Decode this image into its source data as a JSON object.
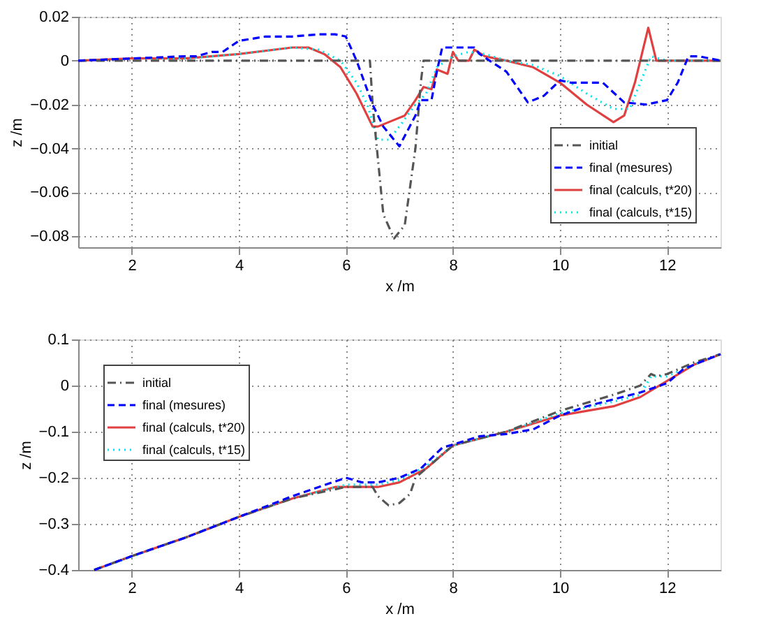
{
  "chart_data": [
    {
      "type": "line",
      "xlabel": "x /m",
      "ylabel": "z /m",
      "xlim": [
        1,
        13
      ],
      "xticks": [
        2,
        4,
        6,
        8,
        10,
        12
      ],
      "ylim": [
        -0.085,
        0.02
      ],
      "yticks": [
        -0.08,
        -0.06,
        -0.04,
        -0.02,
        {
          "value": 0,
          "label": "0"
        },
        0.02
      ],
      "grid": true,
      "legend": "bottom right",
      "series": [
        {
          "name": "initial",
          "color": "#555555",
          "line_style": "dashdot",
          "x": [
            1,
            6.4,
            6.45,
            6.5,
            6.7,
            6.9,
            7.1,
            7.3,
            7.4,
            7.45,
            13
          ],
          "values": [
            0,
            0,
            0,
            -0.02,
            -0.07,
            -0.081,
            -0.075,
            -0.04,
            -0.01,
            0,
            0
          ]
        },
        {
          "name": "final (mesures)",
          "color": "#0000ff",
          "line_style": "dashed",
          "x": [
            1,
            2,
            3,
            3.2,
            3.5,
            3.7,
            4,
            4.5,
            5,
            5.5,
            5.8,
            6,
            6.2,
            6.5,
            6.7,
            7,
            7.3,
            7.4,
            7.6,
            7.7,
            7.8,
            8.4,
            8.5,
            9,
            9.4,
            9.7,
            10,
            10.2,
            10.8,
            11.2,
            11.6,
            12,
            12.2,
            12.4,
            12.6,
            13
          ],
          "values": [
            0,
            0.001,
            0.002,
            0.002,
            0.004,
            0.004,
            0.009,
            0.011,
            0.011,
            0.012,
            0.012,
            0.011,
            0,
            -0.02,
            -0.03,
            -0.039,
            -0.025,
            -0.018,
            -0.018,
            -0.005,
            0.006,
            0.006,
            0.003,
            -0.005,
            -0.019,
            -0.016,
            -0.009,
            -0.01,
            -0.01,
            -0.019,
            -0.02,
            -0.018,
            -0.01,
            0.002,
            0.002,
            0
          ]
        },
        {
          "name": "final (calculs, t*20)",
          "color": "#e04040",
          "line_style": "solid",
          "x": [
            1,
            2,
            3,
            4,
            5,
            5.3,
            5.6,
            5.9,
            6.2,
            6.5,
            6.6,
            6.8,
            7.1,
            7.3,
            7.45,
            7.6,
            7.7,
            7.9,
            8,
            8.1,
            8.3,
            8.4,
            8.6,
            9,
            9.5,
            10,
            10.5,
            11,
            11.2,
            11.4,
            11.55,
            11.65,
            11.8,
            12,
            13
          ],
          "values": [
            0,
            0.001,
            0.001,
            0.003,
            0.006,
            0.006,
            0.003,
            -0.003,
            -0.015,
            -0.03,
            -0.03,
            -0.028,
            -0.025,
            -0.018,
            -0.012,
            -0.013,
            -0.004,
            -0.006,
            0.004,
            0,
            0,
            0.005,
            0.002,
            0,
            -0.003,
            -0.01,
            -0.02,
            -0.028,
            -0.025,
            -0.01,
            0.005,
            0.015,
            0,
            0,
            0
          ]
        },
        {
          "name": "final (calculs, t*15)",
          "color": "#00e5ee",
          "line_style": "dotted",
          "x": [
            1,
            2,
            3,
            4,
            5,
            5.5,
            5.9,
            6.2,
            6.4,
            6.6,
            6.8,
            7,
            7.3,
            7.5,
            7.7,
            8,
            8.3,
            8.6,
            9,
            9.5,
            10,
            10.5,
            11,
            11.3,
            11.5,
            11.7,
            12,
            13
          ],
          "values": [
            0,
            0.001,
            0.001,
            0.003,
            0.006,
            0.005,
            0,
            -0.01,
            -0.02,
            -0.036,
            -0.036,
            -0.03,
            -0.02,
            -0.015,
            -0.003,
            0.002,
            0.004,
            0.003,
            0,
            -0.002,
            -0.007,
            -0.015,
            -0.022,
            -0.022,
            -0.01,
            0.002,
            0,
            0
          ]
        }
      ]
    },
    {
      "type": "line",
      "xlabel": "x /m",
      "ylabel": "z /m",
      "xlim": [
        1,
        13
      ],
      "xticks": [
        2,
        4,
        6,
        8,
        10,
        12
      ],
      "ylim": [
        -0.4,
        0.1
      ],
      "yticks": [
        -0.4,
        -0.3,
        -0.2,
        -0.1,
        {
          "value": 0,
          "label": "0"
        },
        0.1
      ],
      "grid": true,
      "legend": "top left",
      "series": [
        {
          "name": "initial",
          "color": "#555555",
          "line_style": "dashdot",
          "x": [
            1.3,
            2,
            3,
            4,
            5,
            6,
            6.5,
            6.6,
            6.8,
            7,
            7.2,
            7.3,
            7.6,
            7.8,
            8,
            9,
            10,
            11,
            11.5,
            11.7,
            11.8,
            12,
            12.5,
            13
          ],
          "values": [
            -0.4,
            -0.37,
            -0.33,
            -0.285,
            -0.245,
            -0.22,
            -0.22,
            -0.24,
            -0.26,
            -0.255,
            -0.235,
            -0.2,
            -0.17,
            -0.15,
            -0.13,
            -0.1,
            -0.055,
            -0.02,
            0,
            0.025,
            0.02,
            0.025,
            0.05,
            0.068
          ]
        },
        {
          "name": "final (mesures)",
          "color": "#0000ff",
          "line_style": "dashed",
          "x": [
            1.3,
            2,
            3,
            4,
            5,
            6,
            6.3,
            6.6,
            7,
            7.4,
            7.8,
            8.5,
            9,
            9.5,
            10,
            10.5,
            11,
            11.5,
            12,
            12.3,
            12.6,
            13
          ],
          "values": [
            -0.4,
            -0.37,
            -0.33,
            -0.285,
            -0.24,
            -0.2,
            -0.21,
            -0.21,
            -0.2,
            -0.18,
            -0.135,
            -0.11,
            -0.105,
            -0.095,
            -0.065,
            -0.045,
            -0.03,
            -0.015,
            0.005,
            0.035,
            0.05,
            0.068
          ]
        },
        {
          "name": "final (calculs, t*20)",
          "color": "#e04040",
          "line_style": "solid",
          "x": [
            1.3,
            2,
            3,
            4,
            5,
            5.8,
            6.6,
            7,
            7.5,
            8,
            9,
            10,
            11,
            11.5,
            12,
            12.5,
            13
          ],
          "values": [
            -0.4,
            -0.37,
            -0.33,
            -0.285,
            -0.245,
            -0.22,
            -0.22,
            -0.21,
            -0.18,
            -0.13,
            -0.1,
            -0.065,
            -0.045,
            -0.025,
            0.01,
            0.045,
            0.068
          ]
        },
        {
          "name": "final (calculs, t*15)",
          "color": "#00e5ee",
          "line_style": "dotted",
          "x": [
            1.3,
            3,
            4,
            5,
            6,
            6.6,
            7,
            7.5,
            8,
            9,
            10,
            11,
            11.5,
            11.7,
            12,
            12.5,
            13
          ],
          "values": [
            -0.4,
            -0.33,
            -0.285,
            -0.245,
            -0.215,
            -0.215,
            -0.205,
            -0.175,
            -0.13,
            -0.1,
            -0.06,
            -0.035,
            -0.02,
            0.02,
            0.02,
            0.045,
            0.068
          ]
        }
      ]
    }
  ]
}
